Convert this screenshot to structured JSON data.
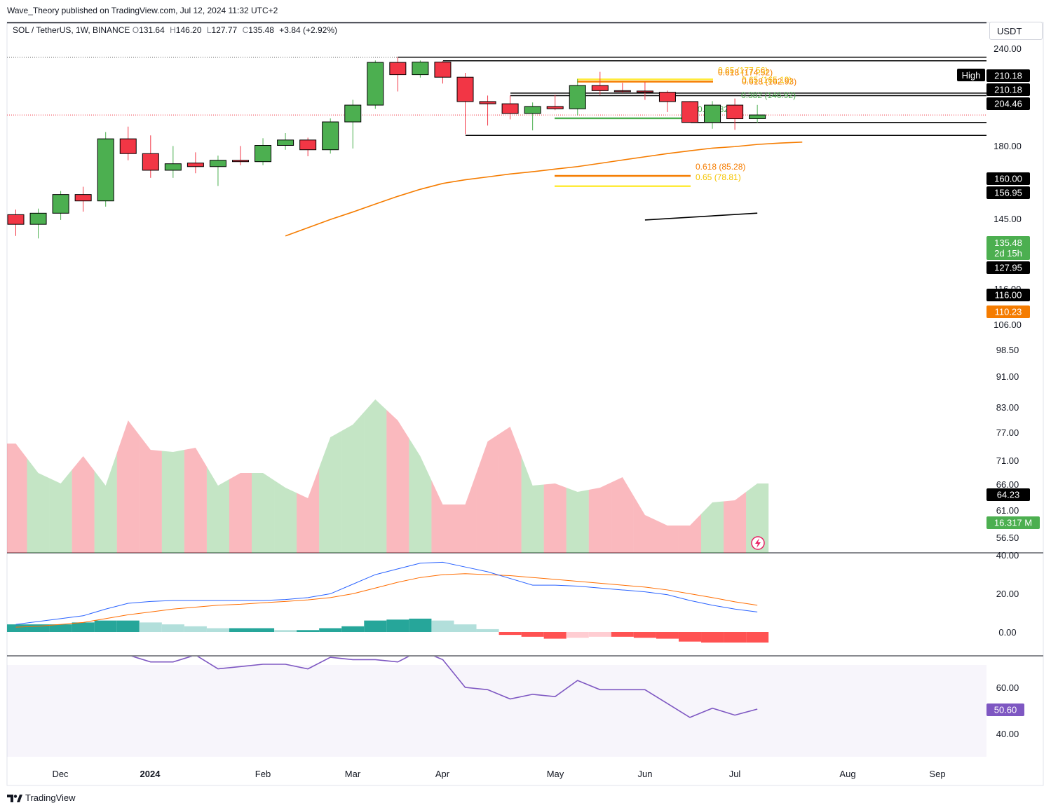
{
  "header": {
    "published_by": "Wave_Theory published on TradingView.com, Jul 12, 2024 11:32 UTC+2"
  },
  "legend": {
    "symbol": "SOL / TetherUS, 1W, BINANCE",
    "o_label": "O",
    "o": "131.64",
    "h_label": "H",
    "h": "146.20",
    "l_label": "L",
    "l": "127.77",
    "c_label": "C",
    "c": "135.48",
    "change": "+3.84 (+2.92%)"
  },
  "currency_button": "USDT",
  "footer": {
    "brand": "TradingView"
  },
  "colors": {
    "up": "#4caf50",
    "down": "#f23645",
    "ema": "#f57c00",
    "macd": "#2962ff",
    "signal": "#ff6d00",
    "rsi": "#7e57c2",
    "fib_orange": "#f57c00",
    "fib_yellow": "#ffeb3b",
    "fib_green": "#4caf50"
  },
  "chart_data": [
    {
      "type": "candlestick",
      "xticks": [
        "Dec",
        "2024",
        "Feb",
        "Mar",
        "Apr",
        "May",
        "Jun",
        "Jul",
        "Aug",
        "Sep"
      ],
      "yticks": [
        "240.00",
        "180.00",
        "145.00",
        "116.00",
        "106.00",
        "98.50",
        "91.00",
        "83.00",
        "77.00",
        "71.00",
        "66.00",
        "61.00",
        "56.50"
      ],
      "ylog": true,
      "candles": [
        {
          "o": 63.5,
          "h": 66.0,
          "l": 54.0,
          "c": 59.0
        },
        {
          "o": 59.0,
          "h": 66.5,
          "l": 53.0,
          "c": 64.2
        },
        {
          "o": 64.2,
          "h": 76.0,
          "l": 61.0,
          "c": 74.0
        },
        {
          "o": 74.0,
          "h": 78.5,
          "l": 65.0,
          "c": 70.5
        },
        {
          "o": 70.5,
          "h": 119.0,
          "l": 67.5,
          "c": 113.0
        },
        {
          "o": 113.0,
          "h": 124.0,
          "l": 96.0,
          "c": 101.0
        },
        {
          "o": 101.0,
          "h": 116.0,
          "l": 84.0,
          "c": 89.0
        },
        {
          "o": 89.0,
          "h": 107.0,
          "l": 84.0,
          "c": 93.5
        },
        {
          "o": 94.0,
          "h": 102.0,
          "l": 87.0,
          "c": 91.5
        },
        {
          "o": 91.5,
          "h": 99.5,
          "l": 79.0,
          "c": 96.0
        },
        {
          "o": 96.0,
          "h": 107.0,
          "l": 92.5,
          "c": 95.0
        },
        {
          "o": 95.0,
          "h": 113.5,
          "l": 92.5,
          "c": 107.5
        },
        {
          "o": 107.5,
          "h": 118.0,
          "l": 104.0,
          "c": 112.0
        },
        {
          "o": 112.0,
          "h": 114.0,
          "l": 99.0,
          "c": 104.0
        },
        {
          "o": 104.0,
          "h": 132.0,
          "l": 101.0,
          "c": 128.5
        },
        {
          "o": 128.5,
          "h": 152.0,
          "l": 105.0,
          "c": 146.0
        },
        {
          "o": 146.0,
          "h": 205.0,
          "l": 142.0,
          "c": 202.0
        },
        {
          "o": 202.0,
          "h": 210.18,
          "l": 162.0,
          "c": 184.0
        },
        {
          "o": 184.0,
          "h": 205.0,
          "l": 180.0,
          "c": 202.5
        },
        {
          "o": 202.5,
          "h": 204.46,
          "l": 172.0,
          "c": 180.5
        },
        {
          "o": 180.5,
          "h": 186.5,
          "l": 117.0,
          "c": 150.0
        },
        {
          "o": 150.0,
          "h": 157.0,
          "l": 125.0,
          "c": 147.5
        },
        {
          "o": 147.5,
          "h": 157.0,
          "l": 131.0,
          "c": 137.0
        },
        {
          "o": 137.0,
          "h": 149.0,
          "l": 120.5,
          "c": 144.5
        },
        {
          "o": 144.5,
          "h": 158.0,
          "l": 140.5,
          "c": 142.0
        },
        {
          "o": 142.0,
          "h": 178.0,
          "l": 135.0,
          "c": 169.5
        },
        {
          "o": 169.5,
          "h": 188.0,
          "l": 158.0,
          "c": 163.0
        },
        {
          "o": 163.0,
          "h": 173.0,
          "l": 160.0,
          "c": 162.5
        },
        {
          "o": 162.5,
          "h": 174.0,
          "l": 152.0,
          "c": 161.0
        },
        {
          "o": 161.0,
          "h": 163.0,
          "l": 138.5,
          "c": 150.0
        },
        {
          "o": 150.0,
          "h": 150.5,
          "l": 128.0,
          "c": 128.0
        },
        {
          "o": 128.0,
          "h": 150.5,
          "l": 122.0,
          "c": 146.0
        },
        {
          "o": 146.0,
          "h": 153.5,
          "l": 121.0,
          "c": 131.6
        },
        {
          "o": 131.64,
          "h": 146.2,
          "l": 127.77,
          "c": 135.48
        }
      ],
      "volume": [
        0.52,
        0.38,
        0.33,
        0.46,
        0.32,
        0.63,
        0.49,
        0.48,
        0.5,
        0.32,
        0.38,
        0.38,
        0.31,
        0.26,
        0.55,
        0.61,
        0.73,
        0.63,
        0.46,
        0.23,
        0.23,
        0.53,
        0.6,
        0.32,
        0.33,
        0.29,
        0.31,
        0.36,
        0.18,
        0.13,
        0.13,
        0.24,
        0.25,
        0.33
      ],
      "volume_ma_value": "16.317 M",
      "ema_label_value": "110.23",
      "ema": [
        [
          12,
          54.0
        ],
        [
          13,
          57.5
        ],
        [
          14,
          61.2
        ],
        [
          15,
          64.8
        ],
        [
          16,
          68.8
        ],
        [
          17,
          73.0
        ],
        [
          18,
          77.0
        ],
        [
          19,
          80.5
        ],
        [
          20,
          82.8
        ],
        [
          21,
          84.6
        ],
        [
          22,
          86.5
        ],
        [
          23,
          88.0
        ],
        [
          24,
          89.8
        ],
        [
          25,
          91.5
        ],
        [
          26,
          93.8
        ],
        [
          27,
          96.2
        ],
        [
          28,
          98.6
        ],
        [
          29,
          101.0
        ],
        [
          30,
          103.2
        ],
        [
          31,
          105.3
        ],
        [
          32,
          106.5
        ],
        [
          33,
          108.3
        ],
        [
          34,
          109.4
        ],
        [
          35,
          110.23
        ]
      ],
      "trendline": [
        [
          28,
          61.0
        ],
        [
          33,
          64.23
        ]
      ],
      "trendline_value": "64.23",
      "horizontal_levels": [
        {
          "label": "210.18",
          "value": 210.18
        },
        {
          "label": "204.46",
          "value": 204.46
        },
        {
          "label": "160.00",
          "value": 160.0
        },
        {
          "label": "156.95",
          "value": 156.95
        },
        {
          "label": "127.95",
          "value": 127.95
        },
        {
          "label": "116.00",
          "value": 116.0
        }
      ],
      "high_marker": {
        "label": "High",
        "value": "210.18"
      },
      "last_price": {
        "value": "135.48",
        "countdown": "2d 15h"
      },
      "fib_levels": [
        {
          "label": "0.65 (177.56)",
          "value": 177.56,
          "color": "#ffeb3b"
        },
        {
          "label": "0.618 (174.52)",
          "value": 174.52,
          "color": "#f57c00"
        },
        {
          "label": "0.65 (165.19)",
          "value": 165.19,
          "color": "#ffeb3b"
        },
        {
          "label": "0.618 (162.93)",
          "value": 162.93,
          "color": "#f57c00"
        },
        {
          "label": "0.382 (146.92)",
          "value": 146.92,
          "color": "#4caf50"
        },
        {
          "label": "0.5 (132.03)",
          "value": 132.03,
          "color": "#4caf50"
        },
        {
          "label": "0.618 (85.28)",
          "value": 85.28,
          "color": "#f57c00"
        },
        {
          "label": "0.65 (78.81)",
          "value": 78.81,
          "color": "#ffeb3b"
        }
      ]
    },
    {
      "type": "macd",
      "yticks": [
        "40.00",
        "20.00",
        "0.00"
      ],
      "macd": [
        4,
        5.5,
        7,
        8.5,
        12,
        15,
        16,
        16.5,
        16.5,
        16.5,
        16.5,
        16.5,
        17,
        18,
        20,
        25,
        30,
        33,
        36,
        36.5,
        34,
        31.5,
        28,
        24.5,
        24.5,
        24,
        23,
        22,
        21,
        19.5,
        16.5,
        14,
        12,
        10.5
      ],
      "signal": [
        2.5,
        3,
        4,
        5,
        7,
        9,
        10.5,
        12,
        13,
        14,
        14.5,
        15.3,
        16,
        16.8,
        18,
        20,
        23,
        26,
        28.5,
        30,
        30.5,
        30,
        29.5,
        28.5,
        27.5,
        26.5,
        25.5,
        24.5,
        23.5,
        22,
        20,
        18,
        15.8,
        14
      ],
      "histogram": [
        4,
        4,
        4,
        5,
        6,
        6,
        5,
        4,
        3,
        2,
        2,
        2,
        1,
        1,
        2,
        3,
        6,
        6.5,
        7,
        6,
        4,
        1.5,
        -1.5,
        -2.5,
        -3.5,
        -3,
        -2.5,
        -2.5,
        -3,
        -3.5,
        -5,
        -5.5,
        -5.5,
        -5.5
      ]
    },
    {
      "type": "rsi",
      "yticks": [
        "60.00",
        "40.00"
      ],
      "values": [
        80,
        79.5,
        79,
        80.5,
        77,
        74,
        71,
        71,
        74,
        68,
        69,
        70,
        70,
        68,
        73,
        72,
        72,
        71,
        76,
        72,
        60,
        59,
        55,
        57,
        56,
        63,
        59,
        59,
        59,
        53,
        47,
        51,
        48,
        50.6
      ],
      "last_value": "50.60"
    }
  ]
}
